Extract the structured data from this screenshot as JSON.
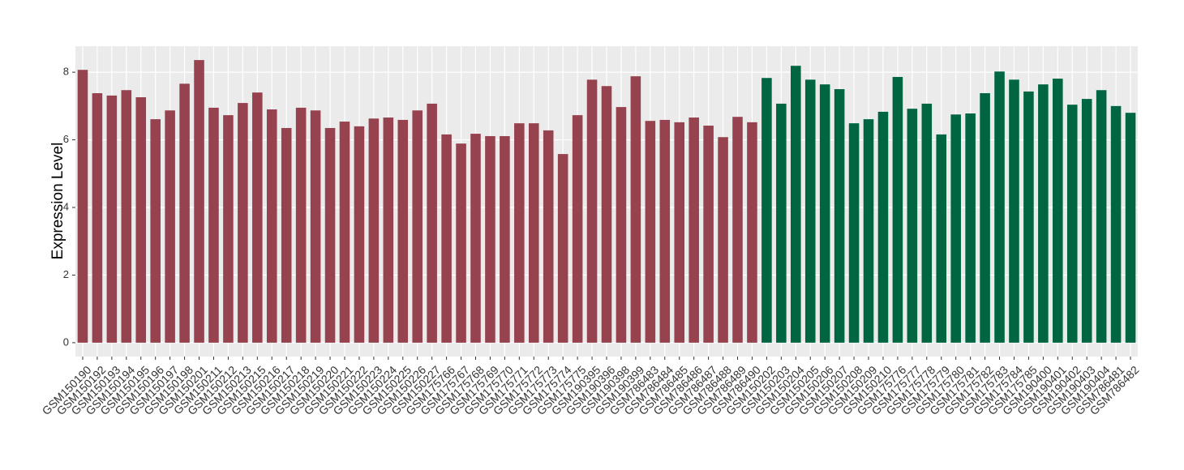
{
  "chart_data": {
    "type": "bar",
    "y_label": "Expression Level",
    "categories": [
      "GSM150190",
      "GSM150192",
      "GSM150193",
      "GSM150194",
      "GSM150195",
      "GSM150196",
      "GSM150197",
      "GSM150198",
      "GSM150201",
      "GSM150211",
      "GSM150212",
      "GSM150213",
      "GSM150215",
      "GSM150216",
      "GSM150217",
      "GSM150218",
      "GSM150219",
      "GSM150220",
      "GSM150221",
      "GSM150222",
      "GSM150223",
      "GSM150224",
      "GSM150225",
      "GSM150226",
      "GSM150227",
      "GSM175766",
      "GSM175767",
      "GSM175768",
      "GSM175769",
      "GSM175770",
      "GSM175771",
      "GSM175772",
      "GSM175773",
      "GSM175774",
      "GSM175775",
      "GSM190395",
      "GSM190396",
      "GSM190398",
      "GSM190399",
      "GSM786483",
      "GSM786484",
      "GSM786485",
      "GSM786486",
      "GSM786487",
      "GSM786488",
      "GSM786489",
      "GSM786490",
      "GSM150202",
      "GSM150203",
      "GSM150204",
      "GSM150205",
      "GSM150206",
      "GSM150207",
      "GSM150208",
      "GSM150209",
      "GSM150210",
      "GSM175776",
      "GSM175777",
      "GSM175778",
      "GSM175779",
      "GSM175780",
      "GSM175781",
      "GSM175782",
      "GSM175783",
      "GSM175784",
      "GSM175785",
      "GSM190400",
      "GSM190401",
      "GSM190402",
      "GSM190403",
      "GSM190404",
      "GSM786481",
      "GSM786482"
    ],
    "series": [
      {
        "color": "#96434f",
        "values": [
          8.07,
          7.38,
          7.31,
          7.47,
          7.26,
          6.61,
          6.87,
          7.66,
          8.36,
          6.95,
          6.73,
          7.09,
          7.4,
          6.9,
          6.35,
          6.95,
          6.87,
          6.35,
          6.54,
          6.4,
          6.63,
          6.66,
          6.59,
          6.87,
          7.07,
          6.16,
          5.89,
          6.18,
          6.11,
          6.11,
          6.49,
          6.49,
          6.28,
          5.58,
          6.73,
          7.78,
          7.59,
          6.97,
          7.88,
          6.56,
          6.59,
          6.52,
          6.66,
          6.42,
          6.08,
          6.68,
          6.52,
          null,
          null,
          null,
          null,
          null,
          null,
          null,
          null,
          null,
          null,
          null,
          null,
          null,
          null,
          null,
          null,
          null,
          null,
          null,
          null,
          null,
          null,
          null,
          null,
          null,
          null
        ]
      },
      {
        "color": "#006642",
        "values": [
          null,
          null,
          null,
          null,
          null,
          null,
          null,
          null,
          null,
          null,
          null,
          null,
          null,
          null,
          null,
          null,
          null,
          null,
          null,
          null,
          null,
          null,
          null,
          null,
          null,
          null,
          null,
          null,
          null,
          null,
          null,
          null,
          null,
          null,
          null,
          null,
          null,
          null,
          null,
          null,
          null,
          null,
          null,
          null,
          null,
          null,
          null,
          7.83,
          7.07,
          8.19,
          7.78,
          7.64,
          7.5,
          6.49,
          6.61,
          6.83,
          7.86,
          6.92,
          7.07,
          6.16,
          6.75,
          6.78,
          7.38,
          8.02,
          7.78,
          7.43,
          7.64,
          7.81,
          7.04,
          7.21,
          7.47,
          7.0,
          6.8
        ]
      }
    ],
    "ylim": [
      -0.41,
      8.77
    ],
    "yticks": [
      0,
      2,
      4,
      6,
      8
    ],
    "grid": true
  }
}
